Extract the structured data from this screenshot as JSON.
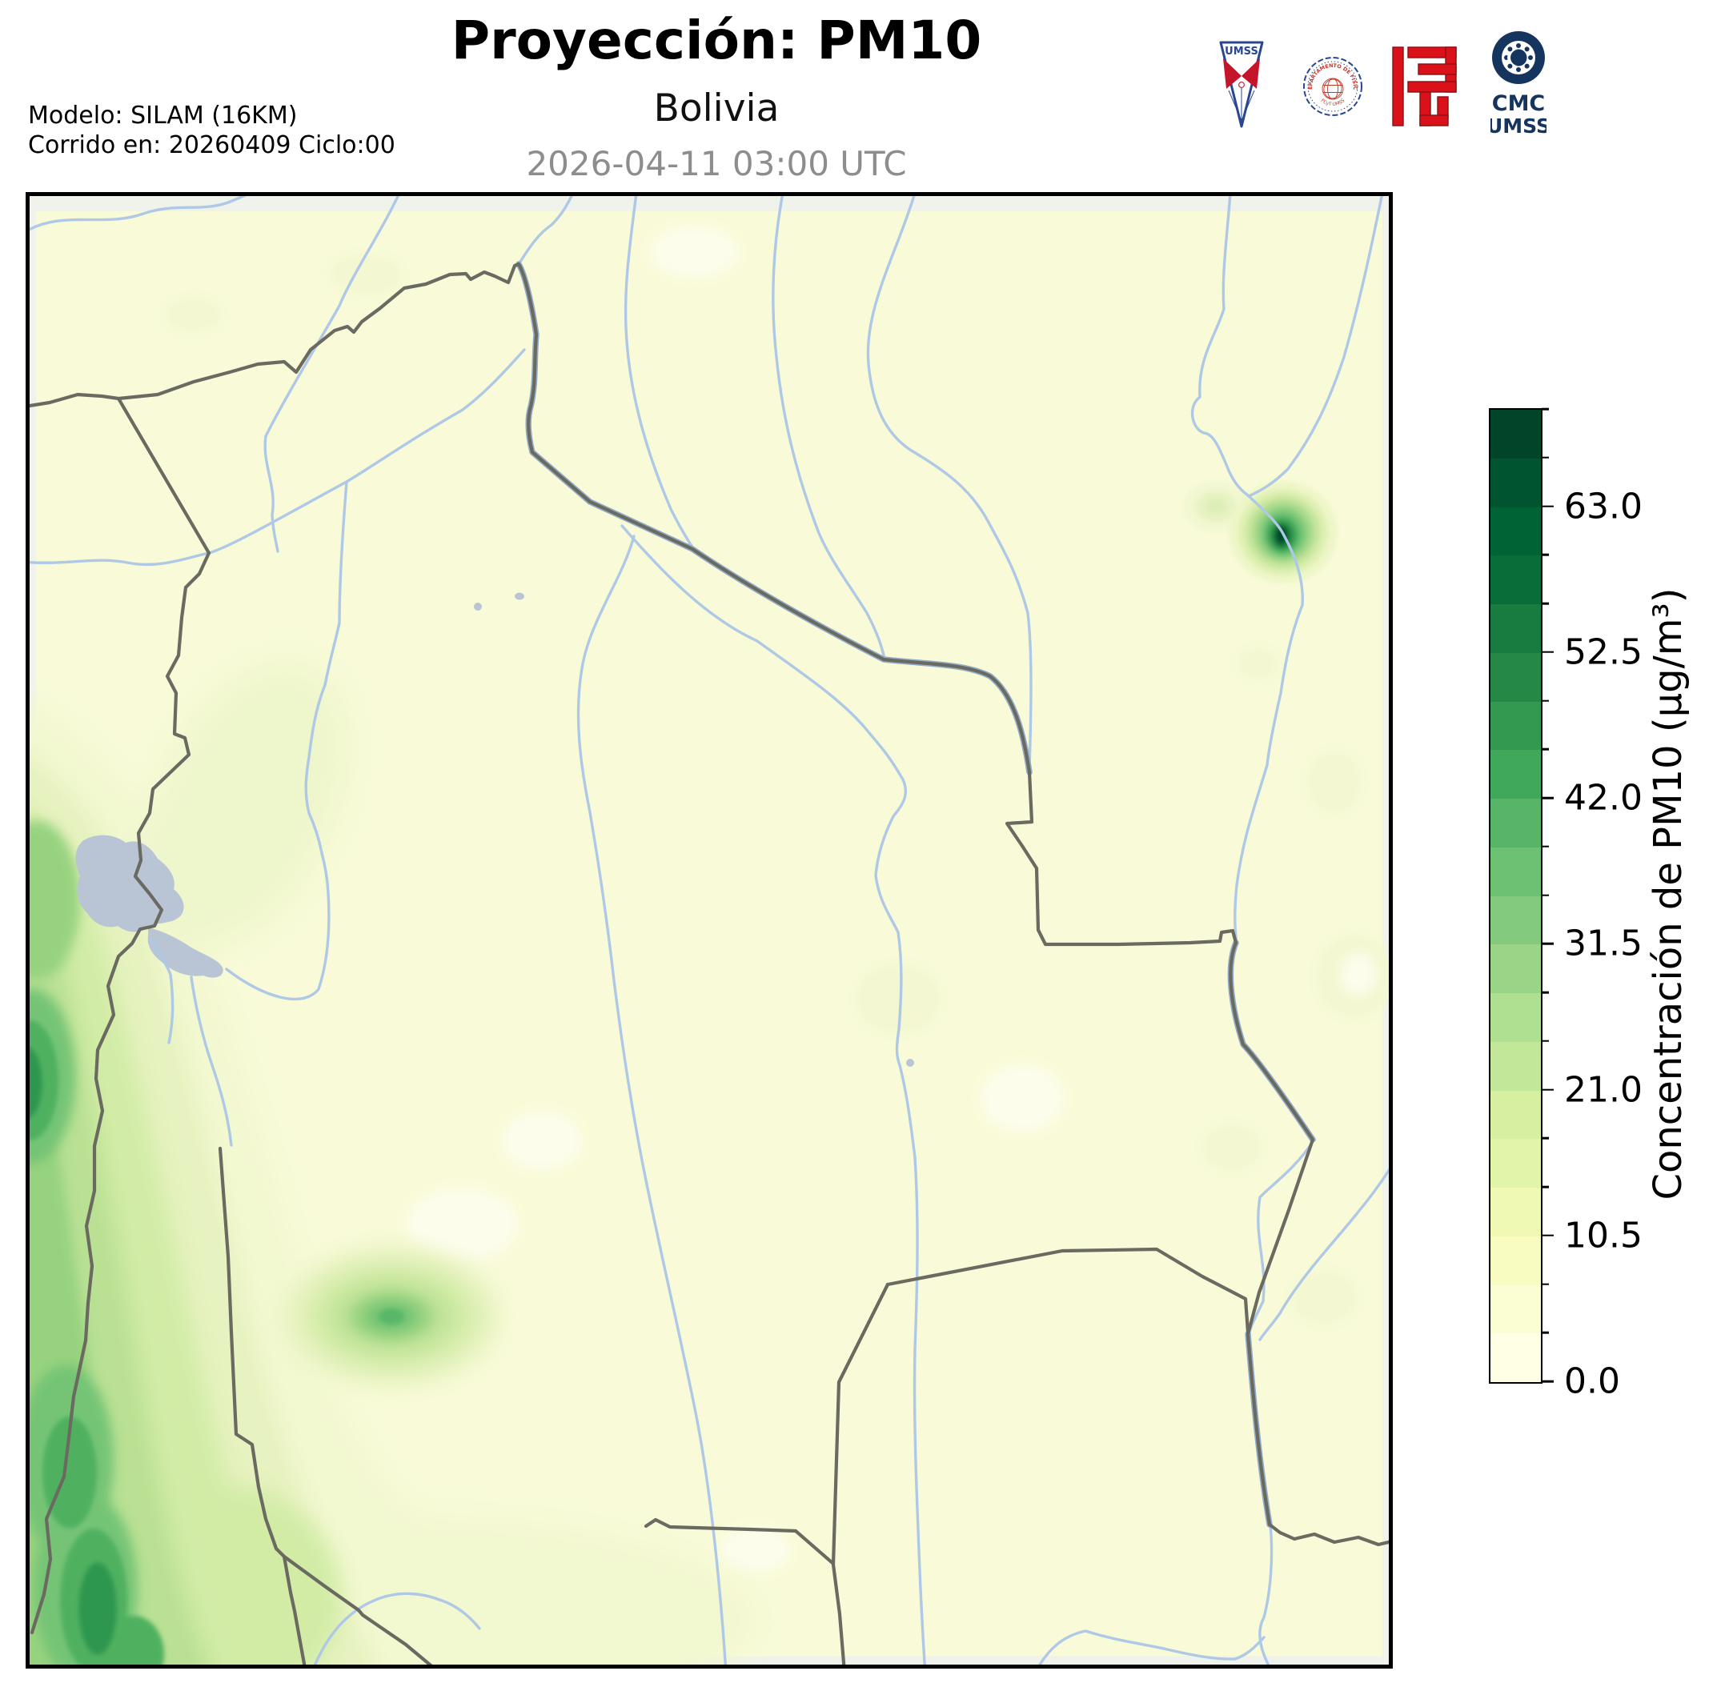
{
  "header": {
    "title": "Proyección: PM10",
    "subtitle": "Bolivia",
    "datetime": "2026-04-11 03:00 UTC",
    "model": "Modelo: SILAM (16KM)",
    "run": "Corrido en: 20260409 Ciclo:00"
  },
  "logos": {
    "umss_label": "UMSS",
    "seal_text": "DEPARTAMENTO DE FÍSICA",
    "seal_subtext": "FCyT·UMSS",
    "cmc_line1": "CMC",
    "cmc_line2": "UMSS"
  },
  "colorbar": {
    "label": "Concentración de PM10 (µg/m³)",
    "units": "µg/m³",
    "vmin": 0,
    "vmax": 70,
    "n_segments": 20,
    "minor_tick_step": 3.5,
    "segment_colors_bottom_to_top": [
      "#ffffe5",
      "#fbfed2",
      "#f8fcc0",
      "#eff9b3",
      "#e2f4aa",
      "#d6efa1",
      "#c3e798",
      "#afdf90",
      "#9ad587",
      "#83ca7e",
      "#6dc173",
      "#56b567",
      "#3fa85b",
      "#339850",
      "#268846",
      "#187b3f",
      "#096d39",
      "#006335",
      "#005430",
      "#004529"
    ],
    "major_ticks": [
      {
        "value": 0,
        "label": "0.0"
      },
      {
        "value": 10.5,
        "label": "10.5"
      },
      {
        "value": 21.0,
        "label": "21.0"
      },
      {
        "value": 31.5,
        "label": "31.5"
      },
      {
        "value": 42.0,
        "label": "42.0"
      },
      {
        "value": 52.5,
        "label": "52.5"
      },
      {
        "value": 63.0,
        "label": "63.0"
      }
    ]
  },
  "map": {
    "region": "Bolivia",
    "variable": "PM10",
    "units": "µg/m³",
    "background_concentration": "0–7 µg/m³ over most of the domain",
    "features": [
      {
        "name": "northeast-hotspot",
        "description": "small intense concentration maximum in NE lowlands",
        "approx_peak_ugm3": "≥ 63"
      },
      {
        "name": "western-andes-band",
        "description": "elevated band along the western (Andes/Chile) border",
        "approx_peak_ugm3": "35–49"
      },
      {
        "name": "central-south-blob",
        "description": "moderate concentration patch south-center",
        "approx_peak_ugm3": "25–32"
      }
    ]
  }
}
